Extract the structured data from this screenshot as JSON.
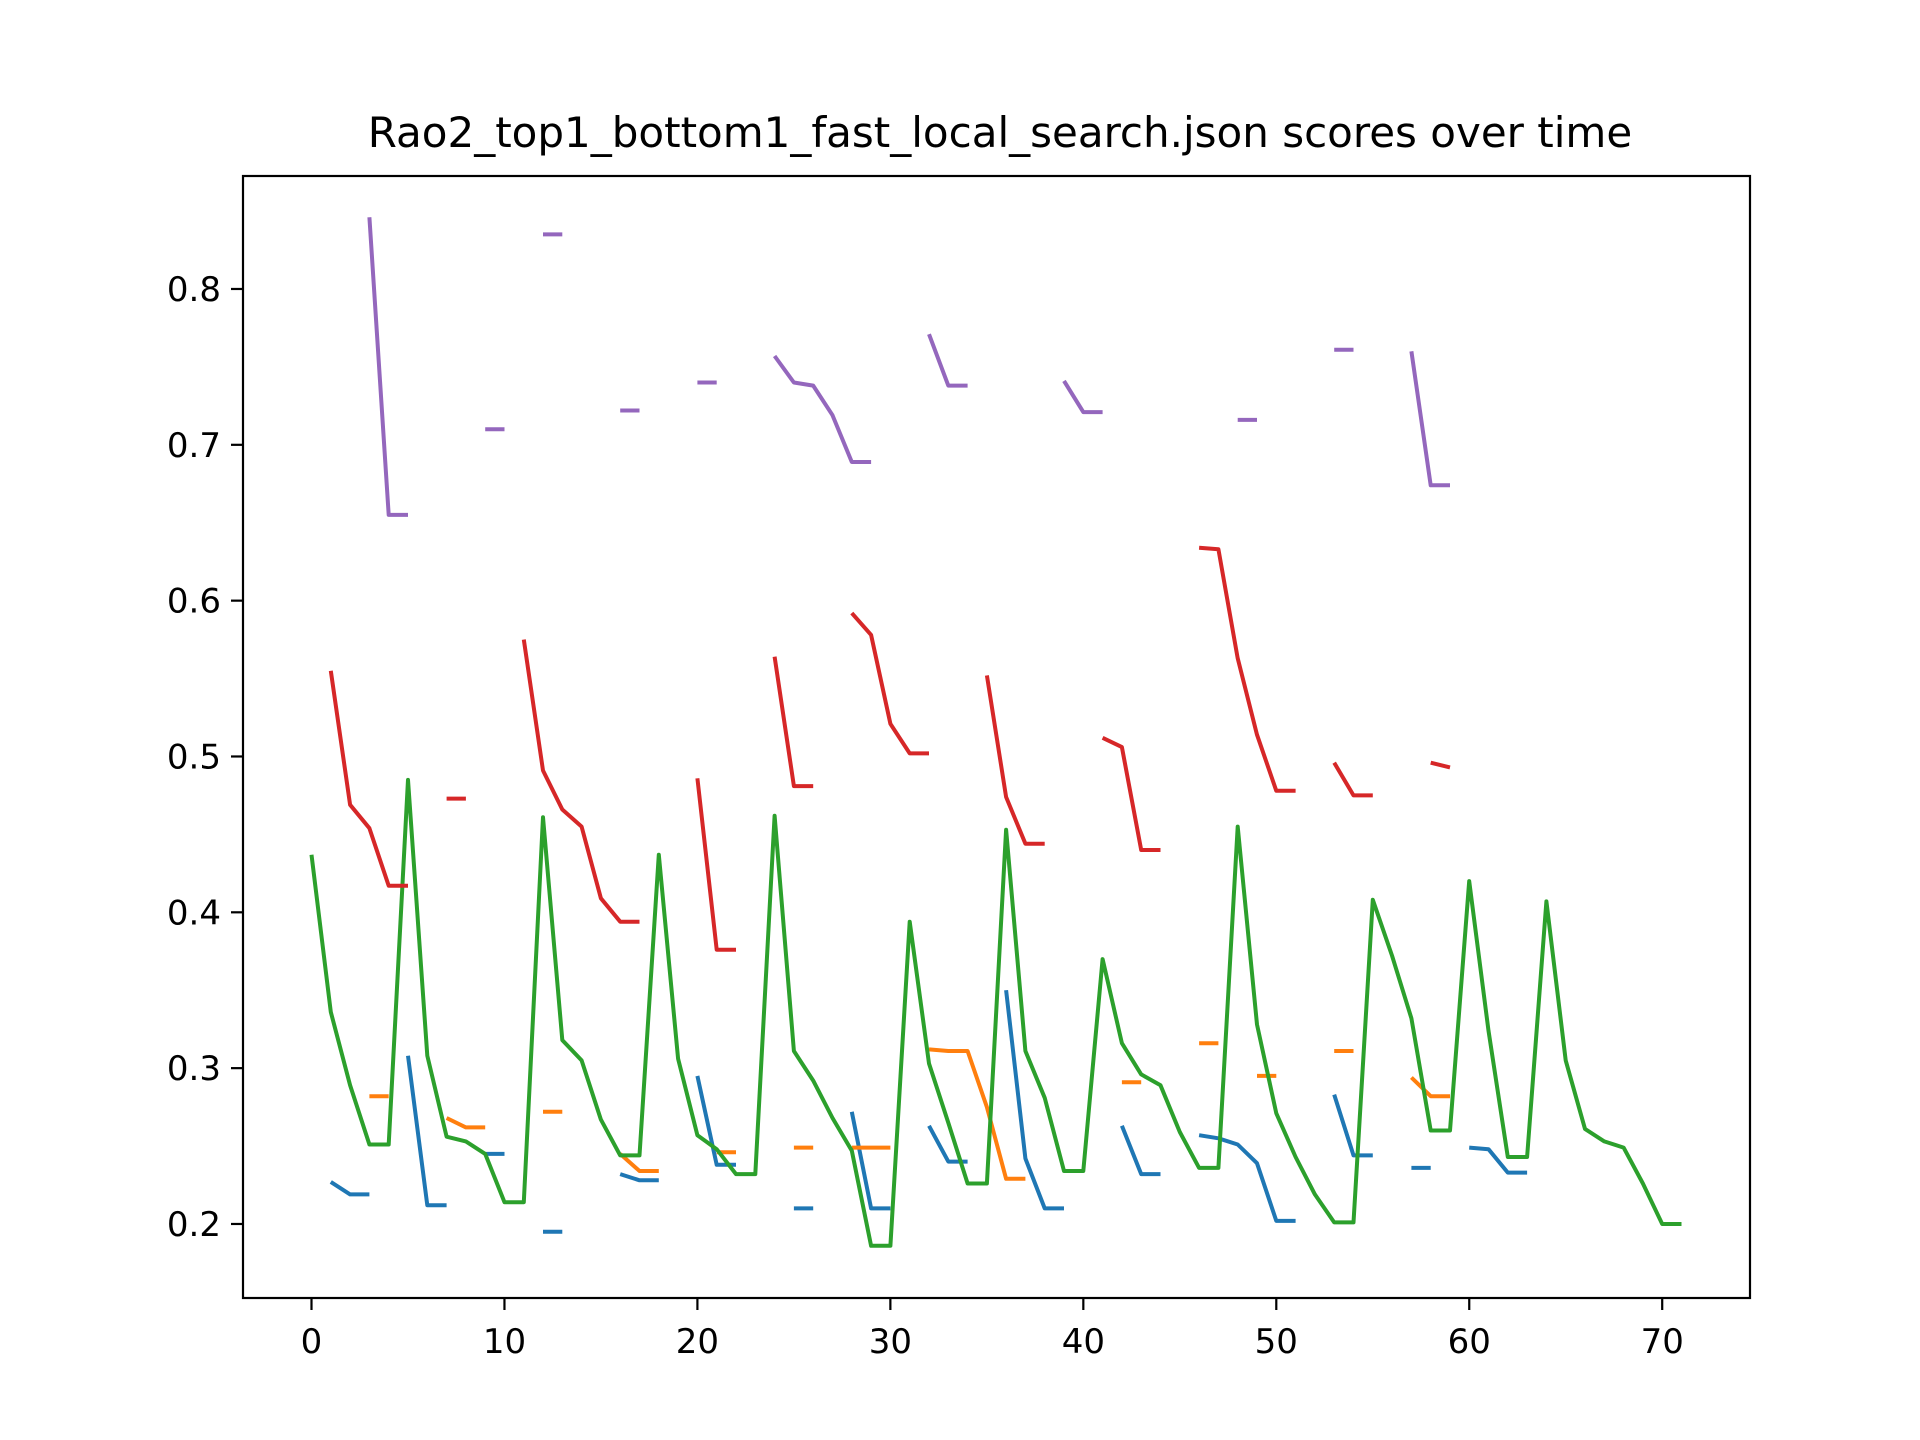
{
  "chart_data": {
    "type": "line",
    "title": "Rao2_top1_bottom1_fast_local_search.json scores over time",
    "xlabel": "",
    "ylabel": "",
    "xlim": [
      -3.55,
      74.55
    ],
    "ylim": [
      0.1525,
      0.8725
    ],
    "xticks": [
      0,
      10,
      20,
      30,
      40,
      50,
      60,
      70
    ],
    "xtick_labels": [
      "0",
      "10",
      "20",
      "30",
      "40",
      "50",
      "60",
      "70"
    ],
    "yticks": [
      0.2,
      0.3,
      0.4,
      0.5,
      0.6,
      0.7,
      0.8
    ],
    "ytick_labels": [
      "0.2",
      "0.3",
      "0.4",
      "0.5",
      "0.6",
      "0.7",
      "0.8"
    ],
    "grid": false,
    "legend": "none",
    "series": [
      {
        "color": "#1f77b4",
        "segments": [
          [
            [
              1,
              0.227
            ],
            [
              2,
              0.219
            ],
            [
              3,
              0.219
            ]
          ],
          [
            [
              5,
              0.308
            ],
            [
              6,
              0.212
            ],
            [
              7,
              0.212
            ]
          ],
          [
            [
              9,
              0.245
            ],
            [
              10,
              0.245
            ]
          ],
          [
            [
              12,
              0.195
            ],
            [
              13,
              0.195
            ]
          ],
          [
            [
              16,
              0.232
            ],
            [
              17,
              0.228
            ],
            [
              18,
              0.228
            ]
          ],
          [
            [
              20,
              0.295
            ],
            [
              21,
              0.238
            ],
            [
              22,
              0.238
            ]
          ],
          [
            [
              25,
              0.21
            ],
            [
              26,
              0.21
            ]
          ],
          [
            [
              28,
              0.272
            ],
            [
              29,
              0.21
            ],
            [
              30,
              0.21
            ]
          ],
          [
            [
              32,
              0.263
            ],
            [
              33,
              0.24
            ],
            [
              34,
              0.24
            ]
          ],
          [
            [
              36,
              0.35
            ],
            [
              37,
              0.242
            ],
            [
              38,
              0.21
            ],
            [
              39,
              0.21
            ]
          ],
          [
            [
              42,
              0.263
            ],
            [
              43,
              0.232
            ],
            [
              44,
              0.232
            ]
          ],
          [
            [
              46,
              0.257
            ],
            [
              47,
              0.255
            ],
            [
              48,
              0.251
            ],
            [
              49,
              0.239
            ],
            [
              50,
              0.202
            ],
            [
              51,
              0.202
            ]
          ],
          [
            [
              53,
              0.283
            ],
            [
              54,
              0.244
            ],
            [
              55,
              0.244
            ]
          ],
          [
            [
              57,
              0.236
            ],
            [
              58,
              0.236
            ]
          ],
          [
            [
              60,
              0.249
            ],
            [
              61,
              0.248
            ],
            [
              62,
              0.233
            ],
            [
              63,
              0.233
            ]
          ]
        ]
      },
      {
        "color": "#ff7f0e",
        "segments": [
          [
            [
              3,
              0.282
            ],
            [
              4,
              0.282
            ]
          ],
          [
            [
              7,
              0.268
            ],
            [
              8,
              0.262
            ],
            [
              9,
              0.262
            ]
          ],
          [
            [
              12,
              0.272
            ],
            [
              13,
              0.272
            ]
          ],
          [
            [
              16,
              0.245
            ],
            [
              17,
              0.234
            ],
            [
              18,
              0.234
            ]
          ],
          [
            [
              21,
              0.246
            ],
            [
              22,
              0.246
            ]
          ],
          [
            [
              25,
              0.249
            ],
            [
              26,
              0.249
            ]
          ],
          [
            [
              28,
              0.249
            ],
            [
              29,
              0.249
            ],
            [
              30,
              0.249
            ]
          ],
          [
            [
              32,
              0.312
            ],
            [
              33,
              0.311
            ],
            [
              34,
              0.311
            ],
            [
              35,
              0.275
            ],
            [
              36,
              0.229
            ],
            [
              37,
              0.229
            ]
          ],
          [
            [
              42,
              0.291
            ],
            [
              43,
              0.291
            ]
          ],
          [
            [
              46,
              0.316
            ],
            [
              47,
              0.316
            ]
          ],
          [
            [
              49,
              0.295
            ],
            [
              50,
              0.295
            ]
          ],
          [
            [
              53,
              0.311
            ],
            [
              54,
              0.311
            ]
          ],
          [
            [
              57,
              0.294
            ],
            [
              58,
              0.282
            ],
            [
              59,
              0.282
            ]
          ]
        ]
      },
      {
        "color": "#2ca02c",
        "segments": [
          [
            [
              0,
              0.437
            ],
            [
              1,
              0.336
            ],
            [
              2,
              0.289
            ],
            [
              3,
              0.251
            ],
            [
              4,
              0.251
            ],
            [
              5,
              0.485
            ],
            [
              6,
              0.308
            ],
            [
              7,
              0.256
            ],
            [
              8,
              0.253
            ],
            [
              9,
              0.245
            ],
            [
              10,
              0.214
            ],
            [
              11,
              0.214
            ],
            [
              12,
              0.461
            ],
            [
              13,
              0.318
            ],
            [
              14,
              0.305
            ],
            [
              15,
              0.267
            ],
            [
              16,
              0.244
            ],
            [
              17,
              0.244
            ],
            [
              18,
              0.437
            ],
            [
              19,
              0.306
            ],
            [
              20,
              0.257
            ],
            [
              21,
              0.248
            ],
            [
              22,
              0.232
            ],
            [
              23,
              0.232
            ],
            [
              24,
              0.462
            ],
            [
              25,
              0.311
            ],
            [
              26,
              0.292
            ],
            [
              27,
              0.268
            ],
            [
              28,
              0.247
            ],
            [
              29,
              0.186
            ],
            [
              30,
              0.186
            ],
            [
              31,
              0.394
            ],
            [
              32,
              0.303
            ],
            [
              33,
              0.265
            ],
            [
              34,
              0.226
            ],
            [
              35,
              0.226
            ],
            [
              36,
              0.453
            ],
            [
              37,
              0.311
            ],
            [
              38,
              0.281
            ],
            [
              39,
              0.234
            ],
            [
              40,
              0.234
            ],
            [
              41,
              0.37
            ],
            [
              42,
              0.316
            ],
            [
              43,
              0.296
            ],
            [
              44,
              0.289
            ],
            [
              45,
              0.259
            ],
            [
              46,
              0.236
            ],
            [
              47,
              0.236
            ],
            [
              48,
              0.455
            ],
            [
              49,
              0.328
            ],
            [
              50,
              0.271
            ],
            [
              51,
              0.243
            ],
            [
              52,
              0.219
            ],
            [
              53,
              0.201
            ],
            [
              54,
              0.201
            ],
            [
              55,
              0.408
            ],
            [
              56,
              0.372
            ],
            [
              57,
              0.332
            ],
            [
              58,
              0.26
            ],
            [
              59,
              0.26
            ],
            [
              60,
              0.42
            ],
            [
              61,
              0.324
            ],
            [
              62,
              0.243
            ],
            [
              63,
              0.243
            ],
            [
              64,
              0.407
            ],
            [
              65,
              0.305
            ],
            [
              66,
              0.261
            ],
            [
              67,
              0.253
            ],
            [
              68,
              0.249
            ],
            [
              69,
              0.226
            ],
            [
              70,
              0.2
            ],
            [
              71,
              0.2
            ]
          ]
        ]
      },
      {
        "color": "#d62728",
        "segments": [
          [
            [
              1,
              0.555
            ],
            [
              2,
              0.469
            ],
            [
              3,
              0.454
            ],
            [
              4,
              0.417
            ],
            [
              5,
              0.417
            ]
          ],
          [
            [
              7,
              0.473
            ],
            [
              8,
              0.473
            ]
          ],
          [
            [
              11,
              0.575
            ],
            [
              12,
              0.491
            ],
            [
              13,
              0.466
            ],
            [
              14,
              0.455
            ],
            [
              15,
              0.409
            ],
            [
              16,
              0.394
            ],
            [
              17,
              0.394
            ]
          ],
          [
            [
              20,
              0.486
            ],
            [
              21,
              0.376
            ],
            [
              22,
              0.376
            ]
          ],
          [
            [
              24,
              0.564
            ],
            [
              25,
              0.481
            ],
            [
              26,
              0.481
            ]
          ],
          [
            [
              28,
              0.592
            ],
            [
              29,
              0.578
            ],
            [
              30,
              0.521
            ],
            [
              31,
              0.502
            ],
            [
              32,
              0.502
            ]
          ],
          [
            [
              35,
              0.552
            ],
            [
              36,
              0.474
            ],
            [
              37,
              0.444
            ],
            [
              38,
              0.444
            ]
          ],
          [
            [
              41,
              0.512
            ],
            [
              42,
              0.506
            ],
            [
              43,
              0.44
            ],
            [
              44,
              0.44
            ]
          ],
          [
            [
              46,
              0.634
            ],
            [
              47,
              0.633
            ],
            [
              48,
              0.563
            ],
            [
              49,
              0.514
            ],
            [
              50,
              0.478
            ],
            [
              51,
              0.478
            ]
          ],
          [
            [
              53,
              0.496
            ],
            [
              54,
              0.475
            ],
            [
              55,
              0.475
            ]
          ],
          [
            [
              58,
              0.496
            ],
            [
              59,
              0.493
            ]
          ]
        ]
      },
      {
        "color": "#9467bd",
        "segments": [
          [
            [
              3,
              0.846
            ],
            [
              4,
              0.655
            ],
            [
              5,
              0.655
            ]
          ],
          [
            [
              9,
              0.71
            ],
            [
              10,
              0.71
            ]
          ],
          [
            [
              12,
              0.835
            ],
            [
              13,
              0.835
            ]
          ],
          [
            [
              16,
              0.722
            ],
            [
              17,
              0.722
            ]
          ],
          [
            [
              20,
              0.74
            ],
            [
              21,
              0.74
            ]
          ],
          [
            [
              24,
              0.757
            ],
            [
              25,
              0.74
            ],
            [
              26,
              0.738
            ],
            [
              27,
              0.719
            ],
            [
              28,
              0.689
            ],
            [
              29,
              0.689
            ]
          ],
          [
            [
              32,
              0.771
            ],
            [
              33,
              0.738
            ],
            [
              34,
              0.738
            ]
          ],
          [
            [
              39,
              0.741
            ],
            [
              40,
              0.721
            ],
            [
              41,
              0.721
            ]
          ],
          [
            [
              48,
              0.716
            ],
            [
              49,
              0.716
            ]
          ],
          [
            [
              53,
              0.761
            ],
            [
              54,
              0.761
            ]
          ],
          [
            [
              57,
              0.76
            ],
            [
              58,
              0.674
            ],
            [
              59,
              0.674
            ]
          ]
        ]
      }
    ]
  }
}
